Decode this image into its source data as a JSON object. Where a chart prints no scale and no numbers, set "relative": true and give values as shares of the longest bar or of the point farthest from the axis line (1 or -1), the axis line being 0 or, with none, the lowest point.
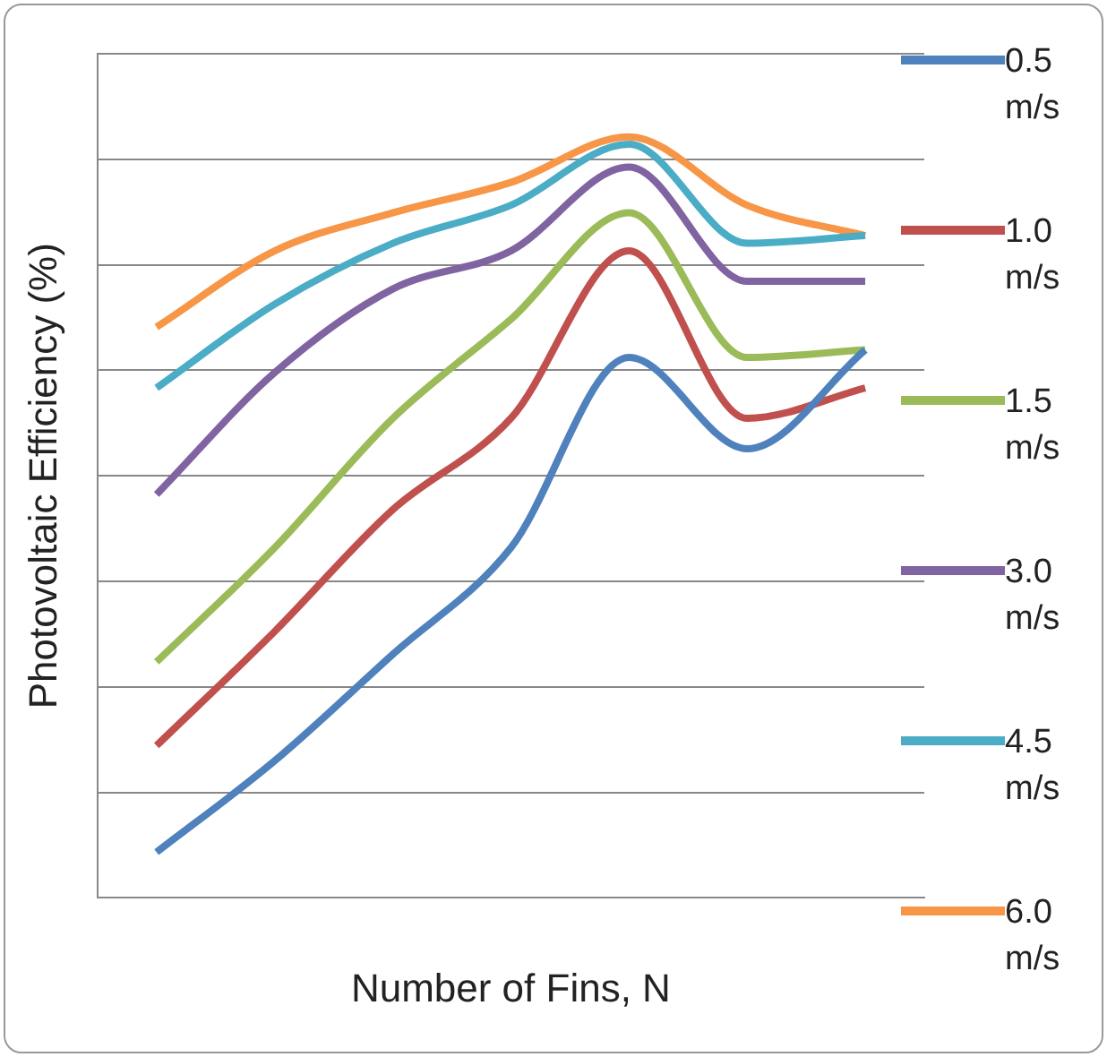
{
  "chart_data": {
    "type": "line",
    "xlabel": "Number of Fins, N",
    "ylabel": "Photovoltaic Efficiency (%)",
    "relative": true,
    "grid": "y",
    "legend": "right",
    "marker": "none",
    "categories": [
      null,
      null,
      null,
      null,
      null,
      null,
      null
    ],
    "series": [
      {
        "name": "0.5 m/s",
        "color": "#4f81bd",
        "values": [
          0.06,
          0.18,
          0.32,
          0.46,
          0.71,
          0.59,
          0.72
        ]
      },
      {
        "name": "1.0 m/s",
        "color": "#c0504d",
        "values": [
          0.2,
          0.35,
          0.51,
          0.63,
          0.85,
          0.63,
          0.67
        ]
      },
      {
        "name": "1.5 m/s",
        "color": "#9bbb59",
        "values": [
          0.31,
          0.46,
          0.63,
          0.76,
          0.9,
          0.71,
          0.72
        ]
      },
      {
        "name": "3.0 m/s",
        "color": "#8064a2",
        "values": [
          0.53,
          0.69,
          0.8,
          0.85,
          0.96,
          0.81,
          0.81
        ]
      },
      {
        "name": "4.5 m/s",
        "color": "#4bacc6",
        "values": [
          0.67,
          0.78,
          0.86,
          0.91,
          0.99,
          0.86,
          0.87
        ]
      },
      {
        "name": "6.0 m/s",
        "color": "#f79646",
        "values": [
          0.75,
          0.85,
          0.9,
          0.94,
          1,
          0.91,
          0.87
        ]
      }
    ]
  }
}
